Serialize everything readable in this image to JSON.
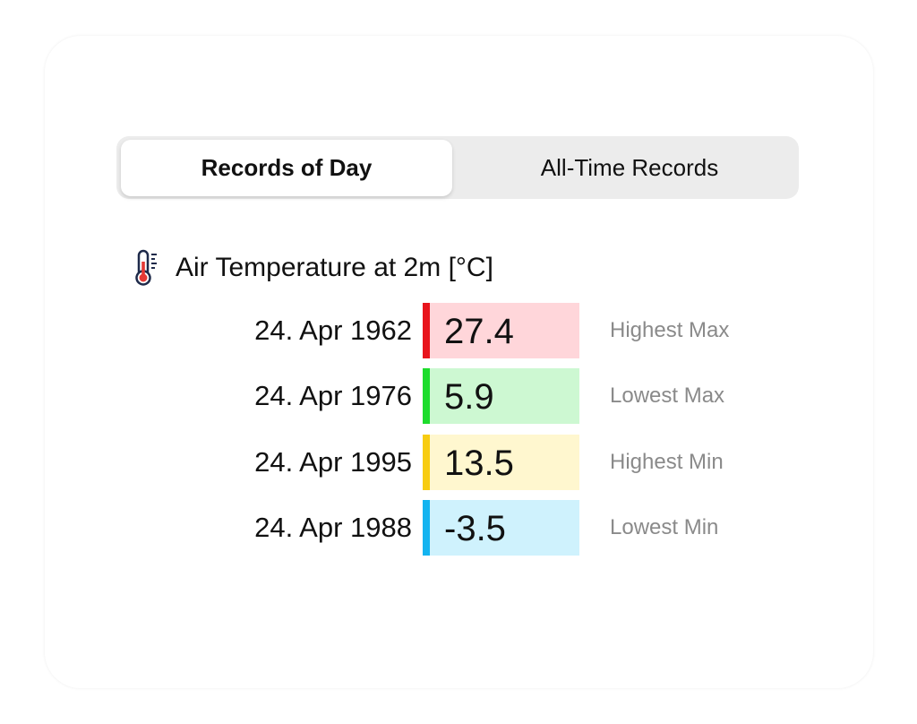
{
  "tabs": [
    "Records of Day",
    "All-Time Records"
  ],
  "section": {
    "title": "Air Temperature at 2m [°C]"
  },
  "records": [
    {
      "date": "24. Apr 1962",
      "value": "27.4",
      "label": "Highest Max"
    },
    {
      "date": "24. Apr 1976",
      "value": "5.9",
      "label": "Lowest Max"
    },
    {
      "date": "24. Apr 1995",
      "value": "13.5",
      "label": "Highest Min"
    },
    {
      "date": "24. Apr 1988",
      "value": "-3.5",
      "label": "Lowest Min"
    }
  ]
}
